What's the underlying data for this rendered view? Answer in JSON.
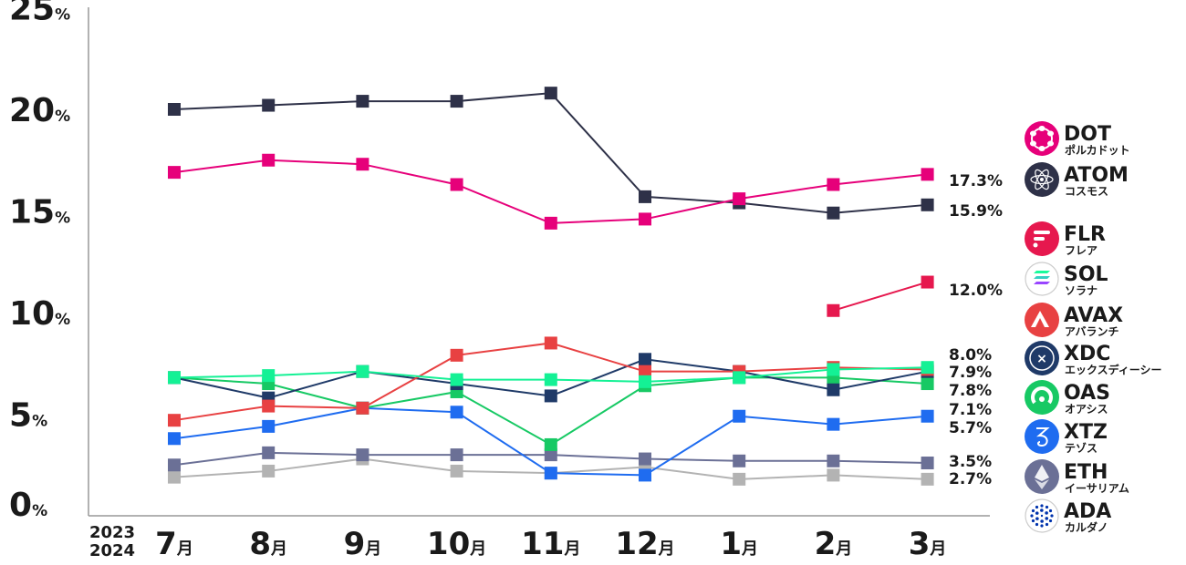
{
  "chart_data": {
    "type": "line",
    "years": [
      "2023",
      "2024"
    ],
    "x": [
      "7",
      "8",
      "9",
      "10",
      "11",
      "12",
      "1",
      "2",
      "3"
    ],
    "x_unit": "月",
    "y_ticks": [
      "0",
      "5",
      "10",
      "15",
      "20",
      "25"
    ],
    "y_unit": "%",
    "ylim": [
      0,
      25
    ],
    "grid": false,
    "legend_position": "right",
    "series": [
      {
        "name": "DOT",
        "label": "ポルカドット",
        "color": "#e6007a",
        "icon": "polkadot-icon",
        "values": [
          16.9,
          17.5,
          17.3,
          16.3,
          14.4,
          14.6,
          15.6,
          16.3,
          16.8
        ]
      },
      {
        "name": "ATOM",
        "label": "コスモス",
        "color": "#2e3148",
        "icon": "cosmos-atom-icon",
        "values": [
          20.0,
          20.2,
          20.4,
          20.4,
          20.8,
          15.7,
          15.4,
          14.9,
          15.3
        ]
      },
      {
        "name": "FLR",
        "label": "フレア",
        "color": "#e6184e",
        "icon": "flare-icon",
        "values": [
          null,
          null,
          null,
          null,
          null,
          null,
          null,
          10.1,
          11.5
        ]
      },
      {
        "name": "SOL",
        "label": "ソラナ",
        "color": "#14f195",
        "icon": "solana-icon",
        "values": [
          6.8,
          6.9,
          7.1,
          6.7,
          6.7,
          6.6,
          6.8,
          7.2,
          7.3
        ]
      },
      {
        "name": "AVAX",
        "label": "アバランチ",
        "color": "#e84142",
        "icon": "avalanche-icon",
        "values": [
          4.7,
          5.4,
          5.3,
          7.9,
          8.5,
          7.1,
          7.1,
          7.3,
          7.2
        ]
      },
      {
        "name": "XDC",
        "label": "エックスディーシー",
        "color": "#1f3a68",
        "icon": "xdc-icon",
        "values": [
          6.8,
          5.8,
          7.1,
          6.5,
          5.9,
          7.7,
          7.1,
          6.2,
          7.1
        ]
      },
      {
        "name": "OAS",
        "label": "オアシス",
        "color": "#17c964",
        "icon": "oasys-icon",
        "values": [
          6.8,
          6.5,
          5.3,
          6.1,
          3.5,
          6.4,
          6.8,
          6.8,
          6.5
        ]
      },
      {
        "name": "XTZ",
        "label": "テゾス",
        "color": "#1f6cf0",
        "icon": "tezos-icon",
        "values": [
          3.8,
          4.4,
          5.3,
          5.1,
          2.1,
          2.0,
          4.9,
          4.5,
          4.9
        ]
      },
      {
        "name": "ETH",
        "label": "イーサリアム",
        "color": "#6b7096",
        "icon": "ethereum-icon",
        "values": [
          2.5,
          3.1,
          3.0,
          3.0,
          3.0,
          2.8,
          2.7,
          2.7,
          2.6
        ]
      },
      {
        "name": "ADA",
        "label": "カルダノ",
        "color": "#b3b3b3",
        "icon": "cardano-icon",
        "values": [
          1.9,
          2.2,
          2.8,
          2.2,
          2.1,
          2.4,
          1.8,
          2.0,
          1.8
        ]
      }
    ],
    "end_labels": [
      "17.3%",
      "15.9%",
      "12.0%",
      "8.0%",
      "7.9%",
      "7.8%",
      "7.1%",
      "5.7%",
      "3.5%",
      "2.7%"
    ]
  }
}
